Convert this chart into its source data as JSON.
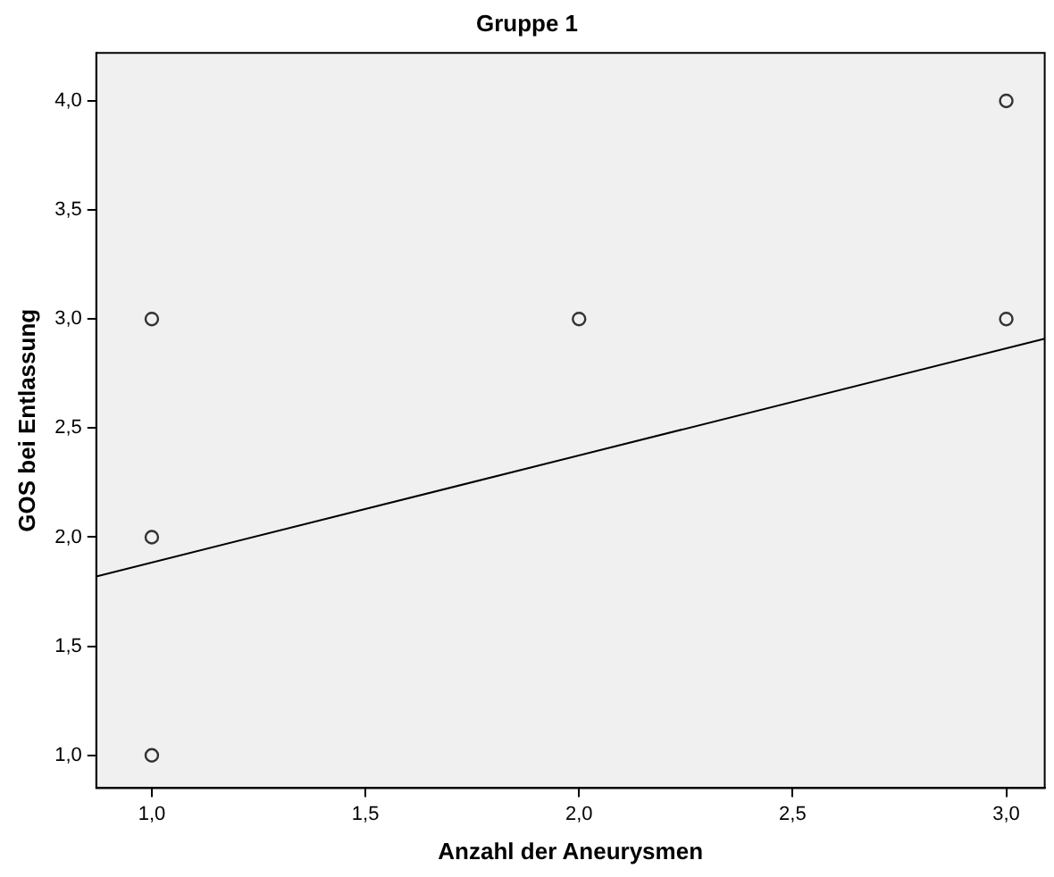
{
  "chart_data": {
    "type": "scatter",
    "title": "Gruppe 1",
    "xlabel": "Anzahl der Aneurysmen",
    "ylabel": "GOS bei Entlassung",
    "series": [
      {
        "color": "#333333",
        "marker": "circle",
        "x": [
          1,
          1,
          1,
          2,
          3,
          3
        ],
        "values": [
          3,
          2,
          1,
          3,
          4,
          3
        ]
      },
      {
        "type": "line",
        "color": "#000000",
        "marker": "none",
        "line_style": "solid",
        "x": [
          0.87,
          3.09
        ],
        "values": [
          1.82,
          2.91
        ]
      }
    ],
    "xlim": [
      0.87,
      3.09
    ],
    "ylim": [
      0.85,
      4.22
    ],
    "xticks": [
      {
        "value": 1,
        "label": "1,0"
      },
      {
        "value": 1.5,
        "label": "1,5"
      },
      {
        "value": 2,
        "label": "2,0"
      },
      {
        "value": 2.5,
        "label": "2,5"
      },
      {
        "value": 3,
        "label": "3,0"
      }
    ],
    "yticks": [
      {
        "value": 1,
        "label": "1,0"
      },
      {
        "value": 1.5,
        "label": "1,5"
      },
      {
        "value": 2,
        "label": "2,0"
      },
      {
        "value": 2.5,
        "label": "2,5"
      },
      {
        "value": 3,
        "label": "3,0"
      },
      {
        "value": 3.5,
        "label": "3,5"
      },
      {
        "value": 4,
        "label": "4,0"
      }
    ],
    "grid": false,
    "legend": false
  }
}
